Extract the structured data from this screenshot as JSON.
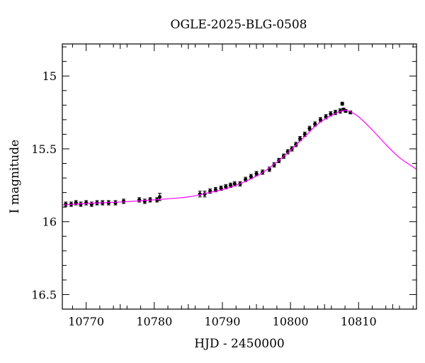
{
  "chart_data": {
    "type": "scatter",
    "title": "OGLE-2025-BLG-0508",
    "xlabel": "HJD - 2450000",
    "ylabel": "I magnitude",
    "xlim": [
      10766.5,
      10818.5
    ],
    "ylim": [
      16.6,
      14.78
    ],
    "y_inverted": true,
    "grid": false,
    "x_ticks": [
      10770,
      10780,
      10790,
      10800,
      10810
    ],
    "x_tick_labels": [
      "10770",
      "10780",
      "10790",
      "10800",
      "10810"
    ],
    "y_ticks": [
      15,
      15.5,
      16,
      16.5
    ],
    "y_tick_labels": [
      "15",
      "15.5",
      "16",
      "16.5"
    ],
    "colors": {
      "points": "#000000",
      "model": "#ff00ff"
    },
    "series": [
      {
        "kind": "points",
        "x": [
          10767.0,
          10767.8,
          10768.5,
          10769.2,
          10770.0,
          10770.8,
          10771.6,
          10772.4,
          10773.3,
          10774.3,
          10775.5,
          10777.8,
          10778.6,
          10779.4,
          10780.4,
          10780.8,
          10786.7,
          10787.4,
          10788.2,
          10789.0,
          10789.8,
          10790.5,
          10791.2,
          10791.8,
          10792.6,
          10793.4,
          10794.2,
          10795.0,
          10795.9,
          10796.9,
          10797.6,
          10798.3,
          10799.0,
          10799.6,
          10800.2,
          10800.8,
          10801.4,
          10802.1,
          10802.8,
          10803.6,
          10804.4,
          10805.2,
          10805.9,
          10806.6,
          10807.3,
          10807.6,
          10807.8,
          10808.1,
          10808.8
        ],
        "y": [
          15.88,
          15.88,
          15.87,
          15.88,
          15.87,
          15.88,
          15.87,
          15.87,
          15.87,
          15.87,
          15.86,
          15.85,
          15.86,
          15.85,
          15.85,
          15.83,
          15.81,
          15.81,
          15.79,
          15.78,
          15.77,
          15.76,
          15.75,
          15.74,
          15.74,
          15.71,
          15.69,
          15.67,
          15.66,
          15.64,
          15.61,
          15.58,
          15.55,
          15.52,
          15.5,
          15.47,
          15.43,
          15.4,
          15.36,
          15.33,
          15.3,
          15.28,
          15.26,
          15.25,
          15.24,
          15.19,
          15.23,
          15.24,
          15.25
        ],
        "yerr": [
          0.015,
          0.015,
          0.015,
          0.015,
          0.015,
          0.015,
          0.015,
          0.015,
          0.015,
          0.015,
          0.015,
          0.015,
          0.015,
          0.015,
          0.015,
          0.025,
          0.02,
          0.02,
          0.015,
          0.015,
          0.015,
          0.015,
          0.015,
          0.015,
          0.015,
          0.015,
          0.015,
          0.015,
          0.015,
          0.015,
          0.015,
          0.015,
          0.015,
          0.015,
          0.015,
          0.015,
          0.015,
          0.015,
          0.015,
          0.015,
          0.015,
          0.015,
          0.015,
          0.015,
          0.015,
          0.01,
          0.01,
          0.01,
          0.01
        ]
      },
      {
        "kind": "model",
        "x": [
          10766.5,
          10770,
          10775,
          10780,
          10785,
          10788,
          10790,
          10792,
          10794,
          10796,
          10798,
          10800,
          10802,
          10804,
          10806,
          10807.5,
          10808.5,
          10810,
          10812,
          10814,
          10816,
          10818.5
        ],
        "y": [
          15.885,
          15.875,
          15.865,
          15.85,
          15.83,
          15.8,
          15.78,
          15.75,
          15.71,
          15.66,
          15.59,
          15.51,
          15.42,
          15.33,
          15.27,
          15.24,
          15.24,
          15.28,
          15.37,
          15.47,
          15.56,
          15.64
        ]
      }
    ]
  }
}
